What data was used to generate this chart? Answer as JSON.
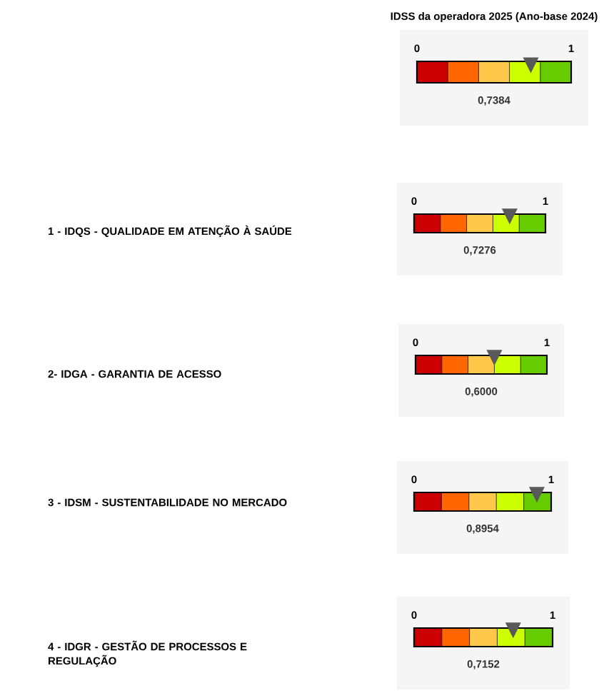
{
  "chart_data": [
    {
      "type": "other",
      "title": "IDSS da operadora 2025 (Ano-base 2024)",
      "values": [
        0.7384
      ],
      "value_labels": [
        "0,7384"
      ],
      "annotations": [
        "0",
        "1"
      ]
    },
    {
      "type": "other",
      "ylabel": "1 - IDQS - QUALIDADE EM ATENÇÃO À SAÚDE",
      "values": [
        0.7276
      ],
      "value_labels": [
        "0,7276"
      ],
      "annotations": [
        "0",
        "1"
      ]
    },
    {
      "type": "other",
      "ylabel": "2- IDGA - GARANTIA DE ACESSO",
      "values": [
        0.6
      ],
      "value_labels": [
        "0,6000"
      ],
      "annotations": [
        "0",
        "1"
      ]
    },
    {
      "type": "other",
      "ylabel": "3 - IDSM - SUSTENTABILIDADE NO MERCADO",
      "values": [
        0.8954
      ],
      "value_labels": [
        "0,8954"
      ],
      "annotations": [
        "0",
        "1"
      ]
    },
    {
      "type": "other",
      "ylabel": "4 - IDGR - GESTÃO DE PROCESSOS E REGULAÇÃO",
      "values": [
        0.7152
      ],
      "value_labels": [
        "0,7152"
      ],
      "annotations": [
        "0",
        "1"
      ]
    }
  ]
}
